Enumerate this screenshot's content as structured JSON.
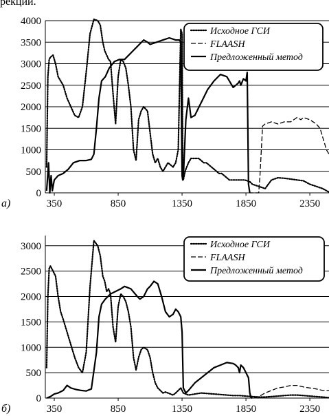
{
  "caption_fragment": "рекции.",
  "chart_data": [
    {
      "type": "line",
      "panel_label": "а)",
      "ylim": [
        0,
        4000
      ],
      "xlim": [
        280,
        2500
      ],
      "yticks": [
        0,
        500,
        1000,
        1500,
        2000,
        2500,
        3000,
        3500,
        4000
      ],
      "xticks": [
        350,
        850,
        1350,
        1850,
        2350
      ],
      "grid": "horizontal",
      "legend_position": "top-right",
      "series": [
        {
          "name": "Исходное ГСИ",
          "style": "dotted",
          "x": [
            290,
            300,
            310,
            320,
            340,
            360,
            380,
            400,
            420,
            450,
            480,
            510,
            540,
            570,
            600,
            630,
            660,
            690,
            710,
            730,
            745,
            760,
            775,
            790,
            810,
            830,
            850,
            870,
            890,
            910,
            930,
            950,
            970,
            990,
            1010,
            1030,
            1050,
            1080,
            1100,
            1120,
            1140,
            1160,
            1180,
            1200,
            1220,
            1240,
            1260,
            1280,
            1300,
            1320,
            1340,
            1350,
            1355,
            1360,
            1370,
            1380,
            1400,
            1420,
            1440,
            1460,
            1480,
            1500,
            1520,
            1540,
            1560,
            1580,
            1600,
            1620,
            1640,
            1660,
            1680,
            1700,
            1720,
            1740,
            1760,
            1780,
            1800,
            1820,
            1840,
            1860,
            1880,
            1900,
            1950,
            2000,
            2020,
            2050,
            2100,
            2150,
            2200,
            2250,
            2300,
            2350,
            2400,
            2450,
            2480,
            2500
          ],
          "y": [
            600,
            2700,
            3100,
            3150,
            3200,
            3000,
            2700,
            2600,
            2500,
            2200,
            2000,
            1800,
            1750,
            2000,
            2800,
            3700,
            4050,
            4000,
            3900,
            3500,
            3300,
            3200,
            3100,
            3050,
            2300,
            1600,
            2700,
            3100,
            3050,
            2900,
            2500,
            2000,
            1000,
            750,
            1700,
            1900,
            2000,
            1900,
            1400,
            900,
            700,
            800,
            600,
            500,
            600,
            700,
            650,
            600,
            700,
            1000,
            3800,
            3700,
            400,
            300,
            450,
            550,
            700,
            800,
            800,
            800,
            800,
            750,
            700,
            700,
            650,
            600,
            550,
            500,
            450,
            450,
            400,
            350,
            300,
            300,
            300,
            300,
            300,
            300,
            300,
            280,
            260,
            200,
            150,
            100,
            180,
            300,
            350,
            340,
            320,
            300,
            280,
            200,
            150,
            100,
            50,
            20
          ]
        },
        {
          "name": "FLAASH",
          "style": "dashed",
          "x": [
            290,
            305,
            315,
            325,
            335,
            350,
            380,
            420,
            460,
            500,
            550,
            600,
            640,
            660,
            680,
            700,
            720,
            750,
            780,
            820,
            860,
            900,
            950,
            1000,
            1050,
            1080,
            1100,
            1150,
            1200,
            1250,
            1300,
            1330,
            1340,
            1350,
            1355,
            1360,
            1380,
            1400,
            1420,
            1450,
            1500,
            1550,
            1600,
            1650,
            1700,
            1750,
            1770,
            1790,
            1800,
            1810,
            1830,
            1850,
            1860,
            1870,
            1880,
            1950,
            1960,
            1980,
            2000,
            2050,
            2100,
            2150,
            2200,
            2250,
            2280,
            2300,
            2350,
            2400,
            2430,
            2450,
            2480,
            2500
          ],
          "y": [
            50,
            700,
            0,
            400,
            50,
            300,
            400,
            450,
            550,
            700,
            750,
            750,
            780,
            900,
            1500,
            2200,
            2600,
            2700,
            2900,
            3050,
            3100,
            3100,
            3250,
            3400,
            3550,
            3500,
            3450,
            3500,
            3550,
            3600,
            3550,
            3550,
            3500,
            400,
            300,
            350,
            1700,
            2200,
            1750,
            1800,
            2100,
            2400,
            2600,
            2750,
            2700,
            2450,
            2500,
            2550,
            2600,
            2500,
            2650,
            2600,
            2800,
            200,
            0,
            0,
            400,
            1550,
            1600,
            1650,
            1600,
            1650,
            1650,
            1750,
            1700,
            1750,
            1700,
            1600,
            1500,
            1300,
            1000,
            900
          ]
        },
        {
          "name": "Предложенный метод",
          "style": "solid",
          "x": [
            290,
            305,
            315,
            325,
            335,
            350,
            380,
            420,
            460,
            500,
            550,
            600,
            640,
            660,
            680,
            700,
            720,
            750,
            780,
            820,
            860,
            900,
            950,
            1000,
            1050,
            1080,
            1100,
            1150,
            1200,
            1250,
            1300,
            1330,
            1340,
            1350,
            1355,
            1360,
            1380,
            1400,
            1420,
            1450,
            1500,
            1550,
            1600,
            1650,
            1700,
            1750,
            1770,
            1790,
            1800,
            1810,
            1830,
            1850,
            1860,
            1870,
            1880
          ],
          "y": [
            50,
            700,
            0,
            400,
            50,
            300,
            400,
            450,
            550,
            700,
            750,
            750,
            780,
            900,
            1500,
            2200,
            2600,
            2700,
            2900,
            3050,
            3100,
            3100,
            3250,
            3400,
            3550,
            3500,
            3450,
            3500,
            3550,
            3600,
            3550,
            3550,
            3500,
            400,
            300,
            350,
            1700,
            2200,
            1750,
            1800,
            2100,
            2400,
            2600,
            2750,
            2700,
            2450,
            2500,
            2550,
            2600,
            2500,
            2650,
            2600,
            2800,
            200,
            0
          ]
        }
      ]
    },
    {
      "type": "line",
      "panel_label": "б)",
      "ylim": [
        0,
        3200
      ],
      "xlim": [
        280,
        2500
      ],
      "yticks": [
        0,
        500,
        1000,
        1500,
        2000,
        2500,
        3000
      ],
      "xticks": [
        350,
        850,
        1350,
        1850,
        2350
      ],
      "grid": "horizontal",
      "legend_position": "top-right",
      "series": [
        {
          "name": "Исходное ГСИ",
          "style": "dotted",
          "x": [
            290,
            300,
            310,
            320,
            340,
            360,
            380,
            400,
            420,
            450,
            480,
            510,
            540,
            570,
            600,
            630,
            660,
            690,
            710,
            730,
            745,
            760,
            775,
            790,
            810,
            830,
            850,
            870,
            890,
            910,
            930,
            950,
            970,
            990,
            1010,
            1030,
            1050,
            1080,
            1100,
            1120,
            1140,
            1160,
            1180,
            1200,
            1220,
            1240,
            1260,
            1280,
            1300,
            1320,
            1340,
            1350,
            1360,
            1380,
            1400,
            1450,
            1500,
            1550,
            1600,
            1650,
            1700,
            1750,
            1800,
            1850,
            1900,
            1950,
            2000,
            2050,
            2100,
            2150,
            2200,
            2250,
            2300,
            2350,
            2400,
            2450,
            2500
          ],
          "y": [
            600,
            2000,
            2550,
            2600,
            2500,
            2400,
            2000,
            1700,
            1550,
            1300,
            1050,
            800,
            600,
            500,
            900,
            2200,
            3100,
            3000,
            2800,
            2400,
            2300,
            2100,
            2150,
            2050,
            1400,
            1100,
            1800,
            2050,
            2000,
            1900,
            1700,
            1400,
            800,
            550,
            800,
            950,
            1000,
            950,
            800,
            500,
            300,
            200,
            150,
            100,
            120,
            100,
            80,
            60,
            100,
            150,
            200,
            150,
            100,
            80,
            60,
            80,
            100,
            90,
            80,
            70,
            60,
            50,
            50,
            40,
            30,
            20,
            20,
            30,
            40,
            50,
            60,
            60,
            50,
            40,
            30,
            20,
            10
          ]
        },
        {
          "name": "FLAASH",
          "style": "dashed",
          "x": [
            290,
            320,
            350,
            380,
            420,
            450,
            480,
            520,
            560,
            600,
            640,
            680,
            700,
            720,
            750,
            790,
            830,
            870,
            900,
            950,
            1000,
            1020,
            1050,
            1080,
            1100,
            1130,
            1160,
            1190,
            1220,
            1250,
            1280,
            1300,
            1320,
            1340,
            1350,
            1360,
            1380,
            1400,
            1450,
            1500,
            1550,
            1600,
            1650,
            1700,
            1750,
            1770,
            1790,
            1800,
            1810,
            1830,
            1850,
            1870,
            1880,
            1890,
            1900,
            1950,
            2000,
            2050,
            2100,
            2150,
            2200,
            2250,
            2300,
            2350,
            2400,
            2450,
            2500
          ],
          "y": [
            0,
            30,
            80,
            100,
            150,
            250,
            200,
            170,
            150,
            140,
            180,
            900,
            1600,
            1850,
            1950,
            2050,
            2100,
            2150,
            2200,
            2150,
            2000,
            1950,
            2000,
            2150,
            2200,
            2300,
            2250,
            2000,
            1700,
            1600,
            1650,
            1750,
            1700,
            1600,
            1300,
            200,
            100,
            150,
            300,
            400,
            500,
            600,
            650,
            700,
            680,
            650,
            600,
            500,
            650,
            600,
            500,
            400,
            100,
            10,
            0,
            30,
            100,
            150,
            200,
            220,
            250,
            250,
            220,
            200,
            180,
            150,
            150
          ]
        },
        {
          "name": "Предложенный метод",
          "style": "solid",
          "x": [
            290,
            320,
            350,
            380,
            420,
            450,
            480,
            520,
            560,
            600,
            640,
            680,
            700,
            720,
            750,
            790,
            830,
            870,
            900,
            950,
            1000,
            1020,
            1050,
            1080,
            1100,
            1130,
            1160,
            1190,
            1220,
            1250,
            1280,
            1300,
            1320,
            1340,
            1350,
            1360,
            1380,
            1400,
            1450,
            1500,
            1550,
            1600,
            1650,
            1700,
            1750,
            1770,
            1790,
            1800,
            1810,
            1830,
            1850,
            1870,
            1880,
            1890,
            1900
          ],
          "y": [
            0,
            30,
            80,
            100,
            150,
            250,
            200,
            170,
            150,
            140,
            180,
            900,
            1600,
            1850,
            1950,
            2050,
            2100,
            2150,
            2200,
            2150,
            2000,
            1950,
            2000,
            2150,
            2200,
            2300,
            2250,
            2000,
            1700,
            1600,
            1650,
            1750,
            1700,
            1600,
            1300,
            200,
            100,
            150,
            300,
            400,
            500,
            600,
            650,
            700,
            680,
            650,
            600,
            500,
            650,
            600,
            500,
            400,
            100,
            10,
            0
          ]
        }
      ]
    }
  ]
}
